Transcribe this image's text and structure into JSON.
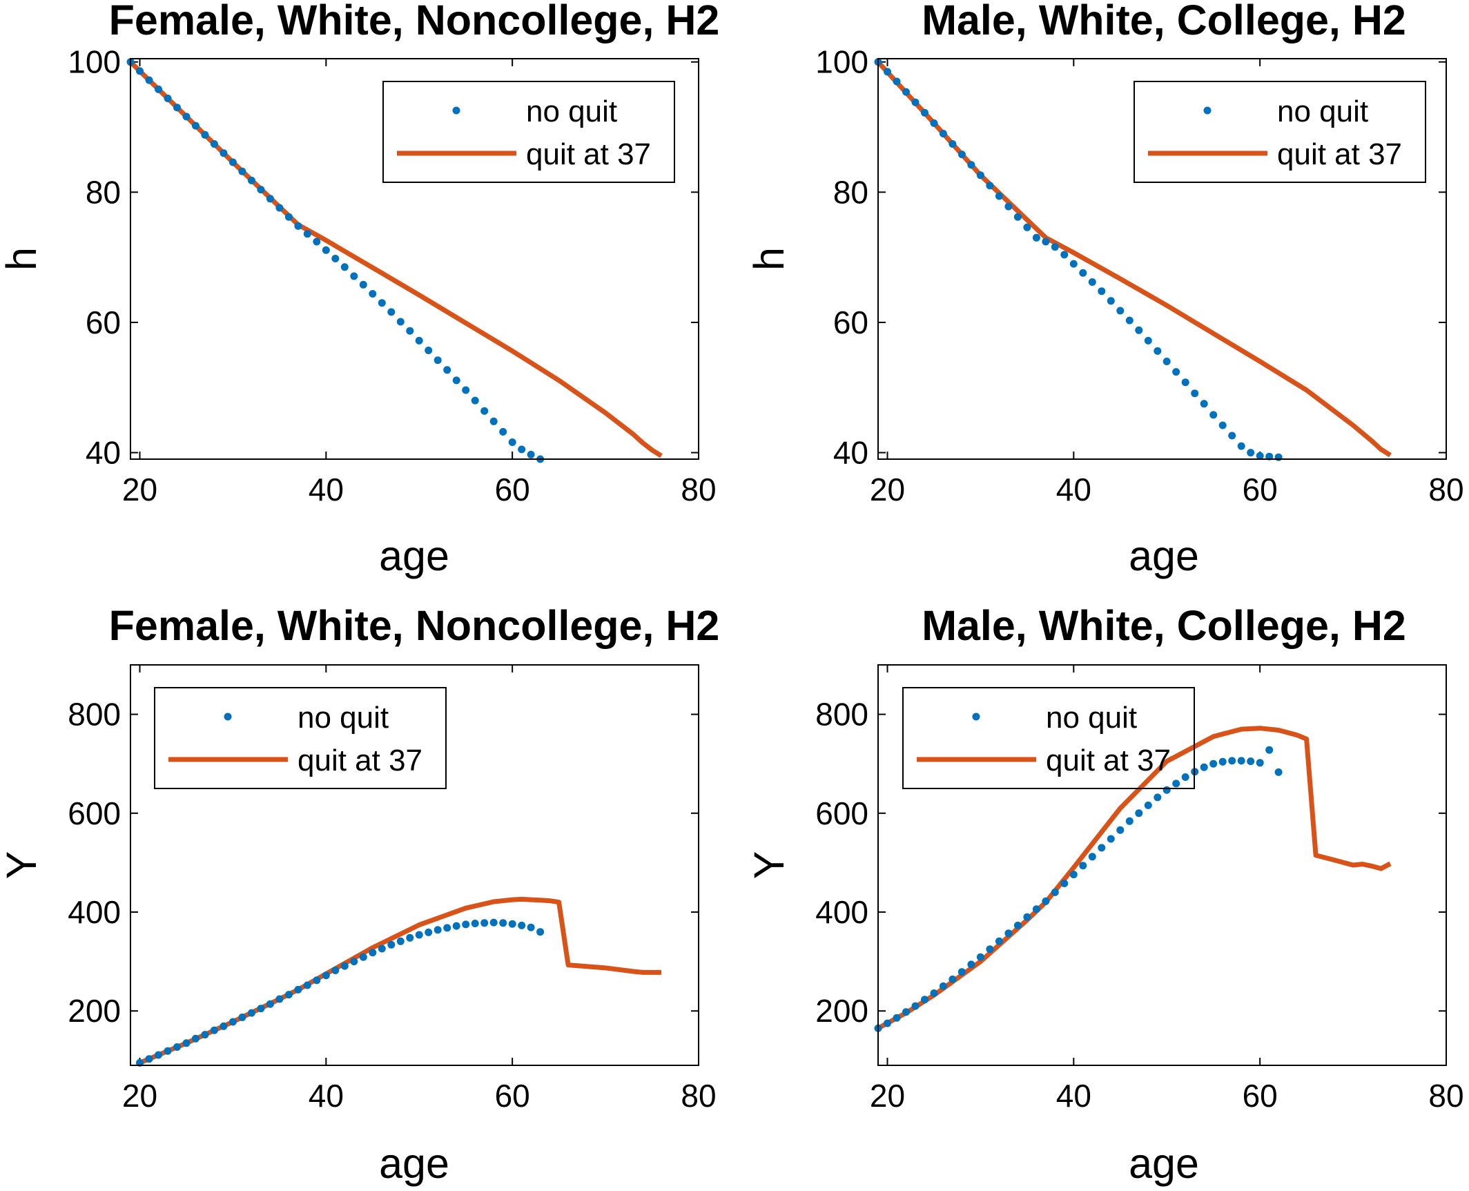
{
  "colors": {
    "no_quit": "#0072BD",
    "quit_at_37": "#D95319",
    "axes": "#000000"
  },
  "chart_data": [
    {
      "type": "line",
      "title": "Female, White, Noncollege, H2",
      "xlabel": "age",
      "ylabel": "h",
      "xlim": [
        19,
        80
      ],
      "ylim": [
        39,
        100.5
      ],
      "xticks": [
        20,
        40,
        60,
        80
      ],
      "yticks": [
        40,
        60,
        80,
        100
      ],
      "legend": {
        "placement": "top-right",
        "entries": [
          "no quit",
          "quit at 37"
        ]
      },
      "series": [
        {
          "name": "no quit",
          "style": "dots",
          "x": [
            19,
            20,
            21,
            22,
            23,
            24,
            25,
            26,
            27,
            28,
            29,
            30,
            31,
            32,
            33,
            34,
            35,
            36,
            37,
            38,
            39,
            40,
            41,
            42,
            43,
            44,
            45,
            46,
            47,
            48,
            49,
            50,
            51,
            52,
            53,
            54,
            55,
            56,
            57,
            58,
            59,
            60,
            61,
            62,
            63
          ],
          "y": [
            100,
            98.6,
            97.2,
            95.8,
            94.4,
            93.0,
            91.6,
            90.2,
            88.8,
            87.4,
            86.0,
            84.6,
            83.2,
            81.8,
            80.4,
            79.0,
            77.6,
            76.2,
            74.8,
            73.6,
            72.4,
            71.1,
            69.8,
            68.5,
            67.1,
            65.8,
            64.4,
            63.0,
            61.6,
            60.1,
            58.7,
            57.2,
            55.7,
            54.2,
            52.7,
            51.1,
            49.6,
            48.0,
            46.4,
            44.8,
            43.2,
            41.6,
            40.5,
            39.7,
            39.0
          ]
        },
        {
          "name": "quit at 37",
          "style": "line",
          "x": [
            19,
            25,
            30,
            37,
            40,
            45,
            50,
            55,
            60,
            65,
            70,
            73,
            74,
            75,
            76
          ],
          "y": [
            100,
            91.6,
            84.6,
            75.0,
            72.6,
            68.4,
            64.2,
            59.9,
            55.6,
            51.1,
            46.1,
            42.8,
            41.5,
            40.4,
            39.5
          ]
        }
      ]
    },
    {
      "type": "line",
      "title": "Male, White, College, H2",
      "xlabel": "age",
      "ylabel": "h",
      "xlim": [
        19,
        80
      ],
      "ylim": [
        39,
        100.5
      ],
      "xticks": [
        20,
        40,
        60,
        80
      ],
      "yticks": [
        40,
        60,
        80,
        100
      ],
      "legend": {
        "placement": "top-right",
        "entries": [
          "no quit",
          "quit at 37"
        ]
      },
      "series": [
        {
          "name": "no quit",
          "style": "dots",
          "x": [
            19,
            20,
            21,
            22,
            23,
            24,
            25,
            26,
            27,
            28,
            29,
            30,
            31,
            32,
            33,
            34,
            35,
            36,
            37,
            38,
            39,
            40,
            41,
            42,
            43,
            44,
            45,
            46,
            47,
            48,
            49,
            50,
            51,
            52,
            53,
            54,
            55,
            56,
            57,
            58,
            59,
            60,
            61,
            62
          ],
          "y": [
            100,
            98.5,
            97.0,
            95.4,
            93.8,
            92.2,
            90.6,
            89.0,
            87.4,
            85.8,
            84.2,
            82.6,
            81.0,
            79.4,
            77.8,
            76.2,
            74.6,
            73.0,
            72.4,
            71.6,
            70.4,
            69.0,
            67.6,
            66.2,
            64.8,
            63.3,
            61.8,
            60.3,
            58.8,
            57.2,
            55.6,
            54.0,
            52.4,
            50.8,
            49.1,
            47.5,
            45.8,
            44.2,
            42.6,
            41.0,
            40.0,
            39.5,
            39.4,
            39.3
          ]
        },
        {
          "name": "quit at 37",
          "style": "line",
          "x": [
            19,
            25,
            30,
            37,
            40,
            45,
            50,
            55,
            60,
            65,
            70,
            72,
            73,
            74
          ],
          "y": [
            100,
            90.6,
            82.6,
            73.0,
            70.7,
            66.7,
            62.6,
            58.3,
            54.0,
            49.6,
            44.2,
            41.8,
            40.5,
            39.6
          ]
        }
      ]
    },
    {
      "type": "line",
      "title": "Female, White, Noncollege, H2",
      "xlabel": "age",
      "ylabel": "Y",
      "xlim": [
        19,
        80
      ],
      "ylim": [
        90,
        900
      ],
      "xticks": [
        20,
        40,
        60,
        80
      ],
      "yticks": [
        200,
        400,
        600,
        800
      ],
      "legend": {
        "placement": "top-left",
        "entries": [
          "no quit",
          "quit at 37"
        ]
      },
      "series": [
        {
          "name": "no quit",
          "style": "dots",
          "x": [
            20,
            21,
            22,
            23,
            24,
            25,
            26,
            27,
            28,
            29,
            30,
            31,
            32,
            33,
            34,
            35,
            36,
            37,
            38,
            39,
            40,
            41,
            42,
            43,
            44,
            45,
            46,
            47,
            48,
            49,
            50,
            51,
            52,
            53,
            54,
            55,
            56,
            57,
            58,
            59,
            60,
            61,
            62,
            63
          ],
          "y": [
            95,
            103,
            111,
            119,
            127,
            135,
            144,
            152,
            161,
            169,
            178,
            187,
            196,
            205,
            214,
            224,
            233,
            243,
            252,
            262,
            272,
            282,
            291,
            300,
            309,
            318,
            326,
            334,
            341,
            348,
            354,
            359,
            364,
            368,
            372,
            375,
            377,
            378,
            379,
            378,
            376,
            373,
            369,
            360
          ]
        },
        {
          "name": "quit at 37",
          "style": "line",
          "x": [
            20,
            25,
            30,
            35,
            37,
            40,
            45,
            50,
            55,
            58,
            60,
            61,
            62,
            63,
            64,
            65,
            66,
            70,
            73,
            74,
            75,
            76
          ],
          "y": [
            95,
            135,
            178,
            224,
            243,
            275,
            328,
            374,
            408,
            421,
            425,
            426,
            425,
            424,
            423,
            420,
            293,
            287,
            280,
            278,
            278,
            278
          ]
        }
      ]
    },
    {
      "type": "line",
      "title": "Male, White, College, H2",
      "xlabel": "age",
      "ylabel": "Y",
      "xlim": [
        19,
        80
      ],
      "ylim": [
        90,
        900
      ],
      "xticks": [
        20,
        40,
        60,
        80
      ],
      "yticks": [
        200,
        400,
        600,
        800
      ],
      "legend": {
        "placement": "top-left",
        "entries": [
          "no quit",
          "quit at 37"
        ]
      },
      "series": [
        {
          "name": "no quit",
          "style": "dots",
          "x": [
            19,
            20,
            21,
            22,
            23,
            24,
            25,
            26,
            27,
            28,
            29,
            30,
            31,
            32,
            33,
            34,
            35,
            36,
            37,
            38,
            39,
            40,
            41,
            42,
            43,
            44,
            45,
            46,
            47,
            48,
            49,
            50,
            51,
            52,
            53,
            54,
            55,
            56,
            57,
            58,
            59,
            60,
            61,
            62
          ],
          "y": [
            165,
            175,
            186,
            198,
            210,
            223,
            236,
            250,
            264,
            279,
            294,
            309,
            325,
            341,
            357,
            373,
            390,
            406,
            422,
            440,
            458,
            476,
            494,
            512,
            530,
            548,
            566,
            584,
            600,
            616,
            632,
            647,
            660,
            673,
            684,
            693,
            700,
            704,
            706,
            706,
            705,
            702,
            728,
            683
          ]
        },
        {
          "name": "quit at 37",
          "style": "line",
          "x": [
            19,
            22,
            25,
            30,
            35,
            37,
            40,
            45,
            50,
            55,
            58,
            60,
            62,
            64,
            65,
            66,
            68,
            70,
            71,
            72,
            73,
            74
          ],
          "y": [
            165,
            196,
            232,
            300,
            384,
            420,
            490,
            610,
            705,
            755,
            770,
            772,
            768,
            758,
            750,
            515,
            505,
            495,
            497,
            493,
            488,
            498
          ]
        }
      ]
    }
  ]
}
